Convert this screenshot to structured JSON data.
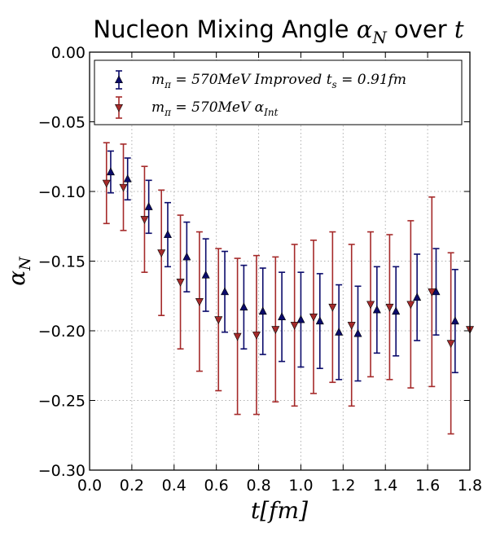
{
  "chart_data": {
    "type": "scatter",
    "title_text": "Nucleon Mixing Angle ",
    "title_math": "α",
    "title_math_sub": "N",
    "title_suffix": " over ",
    "title_var": "t",
    "xlabel_main": "t",
    "xlabel_unit": "[fm]",
    "ylabel_main": "α",
    "ylabel_sub": "N",
    "xlim": [
      0.0,
      1.8
    ],
    "ylim": [
      -0.3,
      0.0
    ],
    "xticks": [
      0.0,
      0.2,
      0.4,
      0.6,
      0.8,
      1.0,
      1.2,
      1.4,
      1.6,
      1.8
    ],
    "xtick_labels": [
      "0.0",
      "0.2",
      "0.4",
      "0.6",
      "0.8",
      "1.0",
      "1.2",
      "1.4",
      "1.6",
      "1.8"
    ],
    "yticks": [
      0.0,
      -0.05,
      -0.1,
      -0.15,
      -0.2,
      -0.25,
      -0.3
    ],
    "ytick_labels": [
      "0.00",
      "−0.05",
      "−0.10",
      "−0.15",
      "−0.20",
      "−0.25",
      "−0.30"
    ],
    "grid": true,
    "legend_position": "top",
    "series": [
      {
        "name": "m_π = 570 MeV Improved t_s = 0.91 fm",
        "legend_label_main": "m",
        "legend_label_sub": "π",
        "legend_label_rest": " = 570MeV Improved t",
        "legend_label_sub2": "s",
        "legend_label_tail": " = 0.91fm",
        "marker": "triangle-up",
        "color": "#0b0b6b",
        "x": [
          0.1,
          0.18,
          0.28,
          0.37,
          0.46,
          0.55,
          0.64,
          0.73,
          0.82,
          0.91,
          1.0,
          1.09,
          1.18,
          1.27,
          1.36,
          1.45,
          1.55,
          1.64,
          1.73
        ],
        "y": [
          -0.086,
          -0.091,
          -0.111,
          -0.131,
          -0.147,
          -0.16,
          -0.172,
          -0.183,
          -0.186,
          -0.19,
          -0.192,
          -0.193,
          -0.201,
          -0.202,
          -0.185,
          -0.186,
          -0.176,
          -0.172,
          -0.193
        ],
        "err": [
          0.015,
          0.015,
          0.019,
          0.023,
          0.025,
          0.026,
          0.029,
          0.03,
          0.031,
          0.032,
          0.034,
          0.034,
          0.034,
          0.034,
          0.031,
          0.032,
          0.031,
          0.031,
          0.037
        ]
      },
      {
        "name": "m_π = 570 MeV α_Int",
        "legend_label_main": "m",
        "legend_label_sub": "π",
        "legend_label_rest": " = 570MeV α",
        "legend_label_sub2": "Int",
        "legend_label_tail": "",
        "marker": "triangle-down",
        "color": "#a52a2a",
        "x": [
          0.08,
          0.16,
          0.26,
          0.34,
          0.43,
          0.52,
          0.61,
          0.7,
          0.79,
          0.88,
          0.97,
          1.06,
          1.15,
          1.24,
          1.33,
          1.42,
          1.52,
          1.62,
          1.71,
          1.8
        ],
        "y": [
          -0.094,
          -0.097,
          -0.12,
          -0.144,
          -0.165,
          -0.179,
          -0.192,
          -0.204,
          -0.203,
          -0.199,
          -0.196,
          -0.19,
          -0.183,
          -0.196,
          -0.181,
          -0.183,
          -0.181,
          -0.172,
          -0.209,
          -0.199
        ],
        "err": [
          0.029,
          0.031,
          0.038,
          0.045,
          0.048,
          0.05,
          0.051,
          0.056,
          0.057,
          0.052,
          0.058,
          0.055,
          0.054,
          0.058,
          0.052,
          0.052,
          0.06,
          0.068,
          0.065,
          0.0
        ]
      }
    ]
  }
}
